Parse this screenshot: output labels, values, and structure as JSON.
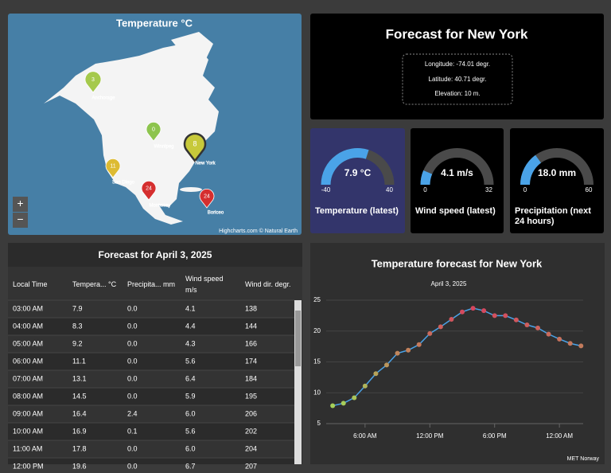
{
  "map": {
    "title": "Temperature °C",
    "credit": "Highcharts.com © Natural Earth",
    "zoom_in": "+",
    "zoom_out": "−",
    "cities": [
      {
        "name": "Anchorage",
        "value": 3,
        "color": "#a5c94c"
      },
      {
        "name": "Winnipeg",
        "value": 0,
        "color": "#8dc44e"
      },
      {
        "name": "New York",
        "value": 8,
        "color": "#c7c93a"
      },
      {
        "name": "San Diego",
        "value": 11,
        "color": "#ddbb33"
      },
      {
        "name": "Monterrey",
        "value": 24,
        "color": "#d52f2f"
      },
      {
        "name": "Boriceo",
        "value": 24,
        "color": "#d52f2f"
      }
    ]
  },
  "forecast": {
    "title": "Forecast for New York",
    "longitude": "Longitude: -74.01 degr.",
    "latitude": "Latitude: 40.71 degr.",
    "elevation": "Elevation: 10 m."
  },
  "gauges": [
    {
      "title": "Temperature (latest)",
      "value": 7.9,
      "value_label": "7.9 °C",
      "min": -40,
      "max": 40,
      "color": "#4aa3e8",
      "background": "#33356b"
    },
    {
      "title": "Wind speed (latest)",
      "value": 4.1,
      "value_label": "4.1 m/s",
      "min": 0,
      "max": 32,
      "color": "#4aa3e8",
      "background": "#000000"
    },
    {
      "title": "Precipitation (next 24 hours)",
      "value": 18.0,
      "value_label": "18.0 mm",
      "min": 0,
      "max": 60,
      "color": "#4aa3e8",
      "background": "#000000"
    }
  ],
  "table": {
    "title": "Forecast for April 3, 2025",
    "columns": [
      "Local Time",
      "Tempera... °C",
      "Precipita... mm",
      "Wind speed m/s",
      "Wind dir. degr."
    ],
    "rows": [
      [
        "03:00 AM",
        "7.9",
        "0.0",
        "4.1",
        "138"
      ],
      [
        "04:00 AM",
        "8.3",
        "0.0",
        "4.4",
        "144"
      ],
      [
        "05:00 AM",
        "9.2",
        "0.0",
        "4.3",
        "166"
      ],
      [
        "06:00 AM",
        "11.1",
        "0.0",
        "5.6",
        "174"
      ],
      [
        "07:00 AM",
        "13.1",
        "0.0",
        "6.4",
        "184"
      ],
      [
        "08:00 AM",
        "14.5",
        "0.0",
        "5.9",
        "195"
      ],
      [
        "09:00 AM",
        "16.4",
        "2.4",
        "6.0",
        "206"
      ],
      [
        "10:00 AM",
        "16.9",
        "0.1",
        "5.6",
        "202"
      ],
      [
        "11:00 AM",
        "17.8",
        "0.0",
        "6.0",
        "204"
      ],
      [
        "12:00 PM",
        "19.6",
        "0.0",
        "6.7",
        "207"
      ]
    ]
  },
  "chart_data": {
    "type": "line",
    "title": "Temperature forecast for New York",
    "subtitle": "April 3, 2025",
    "credit": "MET Norway",
    "x": [
      3,
      4,
      5,
      6,
      7,
      8,
      9,
      10,
      11,
      12,
      13,
      14,
      15,
      16,
      17,
      18,
      19,
      20,
      21,
      22,
      23,
      24,
      25,
      26
    ],
    "series": [
      {
        "name": "Temperature",
        "color": "#4aa3e8",
        "values": [
          7.9,
          8.3,
          9.2,
          11.1,
          13.1,
          14.5,
          16.4,
          16.9,
          17.8,
          19.6,
          20.7,
          21.9,
          23.1,
          23.7,
          23.3,
          22.5,
          22.5,
          21.8,
          21.0,
          20.5,
          19.5,
          18.7,
          18.0,
          17.6
        ]
      }
    ],
    "marker_colors": [
      "#a6d05a",
      "#d6465e"
    ],
    "xlim": [
      2.4,
      26.2
    ],
    "xticks": [
      {
        "value": 6,
        "label": "6:00 AM"
      },
      {
        "value": 12,
        "label": "12:00 PM"
      },
      {
        "value": 18,
        "label": "6:00 PM"
      },
      {
        "value": 24,
        "label": "12:00 AM"
      }
    ],
    "ylim": [
      5,
      25
    ],
    "yticks": [
      5,
      10,
      15,
      20,
      25
    ],
    "grid": true
  }
}
